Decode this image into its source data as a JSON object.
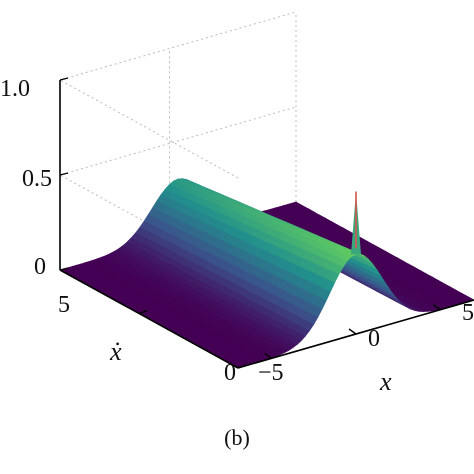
{
  "chart_data": {
    "type": "surface3d",
    "panel_label": "(b)",
    "xlabel": "x",
    "ylabel": "ẋ",
    "zlabel": "",
    "x_ticks": [
      "−5",
      "0",
      "5"
    ],
    "y_ticks": [
      "0",
      "5"
    ],
    "z_ticks": [
      "0",
      "0.5",
      "1.0"
    ],
    "xlim": [
      -7,
      7
    ],
    "ylim": [
      0,
      9
    ],
    "zlim": [
      0,
      1
    ],
    "grid": true,
    "colormap": [
      "#440154",
      "#3b528b",
      "#21908d",
      "#5dc863",
      "#fde725"
    ],
    "surface": {
      "description_free": true,
      "ridge_center_x": 0,
      "ridge_width": 2.2,
      "ridge_peak_at_y0": 0.42,
      "ridge_peak_at_ymax": 0.3,
      "spike": {
        "x": 0,
        "y": 0,
        "z": 0.75
      }
    }
  },
  "colors": {
    "axis": "#000000",
    "grid": "#bbbbbb",
    "floor": "#45126a"
  }
}
